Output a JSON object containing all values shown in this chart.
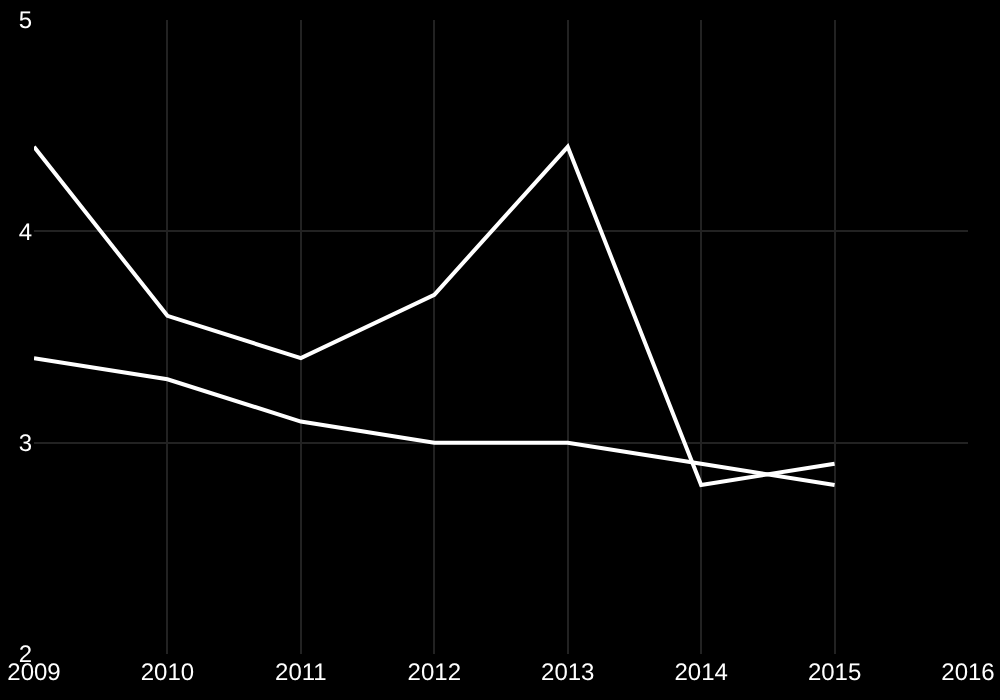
{
  "chart_data": {
    "type": "line",
    "x": [
      2009,
      2010,
      2011,
      2012,
      2013,
      2014,
      2015
    ],
    "series": [
      {
        "color": "#ffffff",
        "values": [
          4.4,
          3.6,
          3.4,
          3.7,
          4.4,
          2.8,
          2.9
        ]
      },
      {
        "color": "#ffffff",
        "values": [
          3.4,
          3.3,
          3.1,
          3.0,
          3.0,
          2.9,
          2.8
        ]
      }
    ],
    "xlim": [
      2009,
      2016
    ],
    "xticks": [
      2009,
      2010,
      2011,
      2012,
      2013,
      2014,
      2015,
      2016
    ],
    "ylim": [
      2,
      5
    ],
    "yticks": [
      2,
      3,
      4,
      5
    ],
    "grid": true,
    "marker": "none",
    "line_style": "solid"
  }
}
